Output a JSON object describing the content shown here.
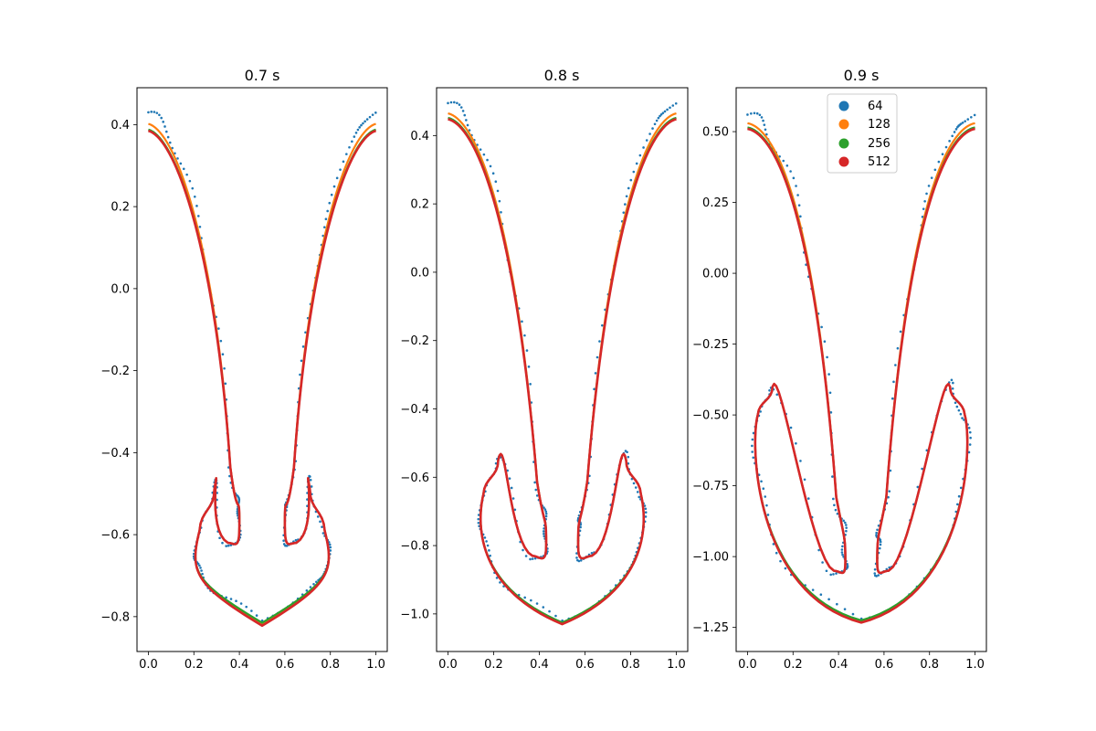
{
  "chart_data": [
    {
      "type": "scatter",
      "title": "0.7 s",
      "xlabel": "",
      "ylabel": "",
      "xlim": [
        -0.05,
        1.05
      ],
      "ylim": [
        -0.885,
        0.49
      ],
      "x_ticks": [
        0.0,
        0.2,
        0.4,
        0.6,
        0.8,
        1.0
      ],
      "x_tick_labels": [
        "0.0",
        "0.2",
        "0.4",
        "0.6",
        "0.8",
        "1.0"
      ],
      "y_ticks": [
        -0.8,
        -0.6,
        -0.4,
        -0.2,
        0.0,
        0.2,
        0.4
      ],
      "y_tick_labels": [
        "−0.8",
        "−0.6",
        "−0.4",
        "−0.2",
        "0.0",
        "0.2",
        "0.4"
      ],
      "legend": false,
      "shape": {
        "neck_x": 0.4,
        "trough": -0.82,
        "bulb_top": -0.54,
        "bulb_x": 0.27,
        "bulb_out": 0.22,
        "pocket_x": 0.35,
        "pocket_y": -0.62,
        "stem_bottom": -0.58,
        "top_right": 0.385
      },
      "series": [
        {
          "name": "64",
          "marker": "dots",
          "top_edge": 0.43,
          "trough": -0.81,
          "noise": 0.008
        },
        {
          "name": "128",
          "marker": "line",
          "top_edge": 0.402,
          "trough": -0.82,
          "noise": 0.0
        },
        {
          "name": "256",
          "marker": "line",
          "top_edge": 0.388,
          "trough": -0.815,
          "noise": 0.0
        },
        {
          "name": "512",
          "marker": "line",
          "top_edge": 0.385,
          "trough": -0.822,
          "noise": 0.0
        }
      ]
    },
    {
      "type": "scatter",
      "title": "0.8 s",
      "xlabel": "",
      "ylabel": "",
      "xlim": [
        -0.05,
        1.05
      ],
      "ylim": [
        -1.11,
        0.54
      ],
      "x_ticks": [
        0.0,
        0.2,
        0.4,
        0.6,
        0.8,
        1.0
      ],
      "x_tick_labels": [
        "0.0",
        "0.2",
        "0.4",
        "0.6",
        "0.8",
        "1.0"
      ],
      "y_ticks": [
        -1.0,
        -0.8,
        -0.6,
        -0.4,
        -0.2,
        0.0,
        0.2,
        0.4
      ],
      "y_tick_labels": [
        "−1.0",
        "−0.8",
        "−0.6",
        "−0.4",
        "−0.2",
        "0.0",
        "0.2",
        "0.4"
      ],
      "legend": false,
      "shape": {
        "neck_x": 0.43,
        "trough": -1.03,
        "bulb_top": -0.6,
        "bulb_x": 0.2,
        "bulb_out": 0.16,
        "pocket_x": 0.37,
        "pocket_y": -0.83,
        "stem_bottom": -0.8,
        "top_right": 0.45
      },
      "series": [
        {
          "name": "64",
          "marker": "dots",
          "top_edge": 0.495,
          "trough": -1.02,
          "noise": 0.01
        },
        {
          "name": "128",
          "marker": "line",
          "top_edge": 0.465,
          "trough": -1.03,
          "noise": 0.0
        },
        {
          "name": "256",
          "marker": "line",
          "top_edge": 0.452,
          "trough": -1.025,
          "noise": 0.0
        },
        {
          "name": "512",
          "marker": "line",
          "top_edge": 0.448,
          "trough": -1.03,
          "noise": 0.0
        }
      ]
    },
    {
      "type": "scatter",
      "title": "0.9 s",
      "xlabel": "",
      "ylabel": "",
      "xlim": [
        -0.05,
        1.05
      ],
      "ylim": [
        -1.335,
        0.655
      ],
      "x_ticks": [
        0.0,
        0.2,
        0.4,
        0.6,
        0.8,
        1.0
      ],
      "x_tick_labels": [
        "0.0",
        "0.2",
        "0.4",
        "0.6",
        "0.8",
        "1.0"
      ],
      "y_ticks": [
        -1.25,
        -1.0,
        -0.75,
        -0.5,
        -0.25,
        0.0,
        0.25,
        0.5
      ],
      "y_tick_labels": [
        "−1.25",
        "−1.00",
        "−0.75",
        "−0.50",
        "−0.25",
        "0.00",
        "0.25",
        "0.50"
      ],
      "legend": true,
      "legend_position": "upper center",
      "shape": {
        "neck_x": 0.43,
        "trough": -1.23,
        "bulb_top": -0.45,
        "bulb_x": 0.09,
        "bulb_out": 0.05,
        "pocket_x": 0.38,
        "pocket_y": -1.05,
        "stem_bottom": -1.02,
        "top_right": 0.51
      },
      "series": [
        {
          "name": "64",
          "marker": "dots",
          "top_edge": 0.56,
          "trough": -1.22,
          "noise": 0.014
        },
        {
          "name": "128",
          "marker": "line",
          "top_edge": 0.53,
          "trough": -1.23,
          "noise": 0.0
        },
        {
          "name": "256",
          "marker": "line",
          "top_edge": 0.515,
          "trough": -1.225,
          "noise": 0.0
        },
        {
          "name": "512",
          "marker": "line",
          "top_edge": 0.51,
          "trough": -1.233,
          "noise": 0.0
        }
      ]
    }
  ],
  "colors": {
    "64": "#1f77b4",
    "128": "#ff7f0e",
    "256": "#2ca02c",
    "512": "#d62728"
  }
}
